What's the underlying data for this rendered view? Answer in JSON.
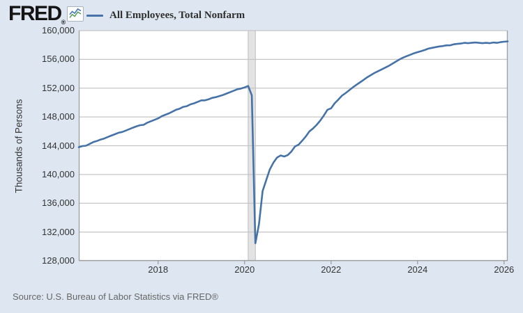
{
  "header": {
    "logo_text": "FRED",
    "logo_registered": "®",
    "legend_label": "All Employees, Total Nonfarm"
  },
  "footer": {
    "source": "Source: U.S. Bureau of Labor Statistics via FRED®"
  },
  "colors": {
    "page_background": "#dee7f1",
    "plot_background": "#ffffff",
    "grid": "#c5c5c5",
    "axis_border": "#9c9c9c",
    "line": "#4572a7",
    "recession_band_fill": "#e3e3e3",
    "recession_band_edge": "#bcbcbc",
    "tick_text": "#333333",
    "source_text": "#666666",
    "icon_blue": "#4577b5",
    "icon_green": "#5aa05a"
  },
  "chart_data": {
    "type": "line",
    "title": "All Employees, Total Nonfarm",
    "ylabel": "Thousands of Persons",
    "xlabel": "",
    "grid": "horizontal",
    "legend_position": "top-left",
    "ylim": [
      128000,
      160000
    ],
    "xlim": [
      2016.1667,
      2026.0833
    ],
    "yticks": [
      {
        "value": 160000,
        "label": "160,000"
      },
      {
        "value": 156000,
        "label": "156,000"
      },
      {
        "value": 152000,
        "label": "152,000"
      },
      {
        "value": 148000,
        "label": "148,000"
      },
      {
        "value": 144000,
        "label": "144,000"
      },
      {
        "value": 140000,
        "label": "140,000"
      },
      {
        "value": 136000,
        "label": "136,000"
      },
      {
        "value": 132000,
        "label": "132,000"
      },
      {
        "value": 128000,
        "label": "128,000"
      }
    ],
    "xticks": [
      {
        "value": 2018,
        "label": "2018"
      },
      {
        "value": 2020,
        "label": "2020"
      },
      {
        "value": 2022,
        "label": "2022"
      },
      {
        "value": 2024,
        "label": "2024"
      },
      {
        "value": 2026,
        "label": "2026"
      }
    ],
    "recession_bands": [
      {
        "start": 2020.0833,
        "end": 2020.25
      }
    ],
    "x_start": 2016.1667,
    "x_interval_years": 0.0833333,
    "frequency": "monthly",
    "series": [
      {
        "name": "All Employees, Total Nonfarm",
        "color": "#4572a7",
        "units": "Thousands of Persons",
        "values": [
          143800,
          143950,
          144000,
          144250,
          144500,
          144650,
          144850,
          145000,
          145200,
          145400,
          145600,
          145800,
          145900,
          146100,
          146300,
          146500,
          146700,
          146850,
          146900,
          147200,
          147400,
          147600,
          147800,
          148100,
          148300,
          148500,
          148750,
          149000,
          149150,
          149400,
          149500,
          149750,
          149900,
          150100,
          150300,
          150300,
          150450,
          150650,
          150750,
          150900,
          151050,
          151250,
          151450,
          151650,
          151850,
          151950,
          152100,
          152300,
          151000,
          130450,
          133100,
          137700,
          139200,
          140700,
          141650,
          142350,
          142650,
          142500,
          142700,
          143200,
          143900,
          144150,
          144700,
          145300,
          146000,
          146400,
          146900,
          147500,
          148200,
          149000,
          149200,
          149900,
          150400,
          150950,
          151300,
          151700,
          152100,
          152450,
          152800,
          153150,
          153500,
          153800,
          154100,
          154350,
          154600,
          154850,
          155100,
          155400,
          155700,
          156000,
          156250,
          156450,
          156650,
          156850,
          157000,
          157150,
          157300,
          157500,
          157600,
          157700,
          157800,
          157850,
          157950,
          157950,
          158100,
          158150,
          158200,
          158300,
          158250,
          158300,
          158350,
          158300,
          158250,
          158300,
          158250,
          158350,
          158300,
          158400,
          158450,
          158500
        ]
      }
    ]
  }
}
